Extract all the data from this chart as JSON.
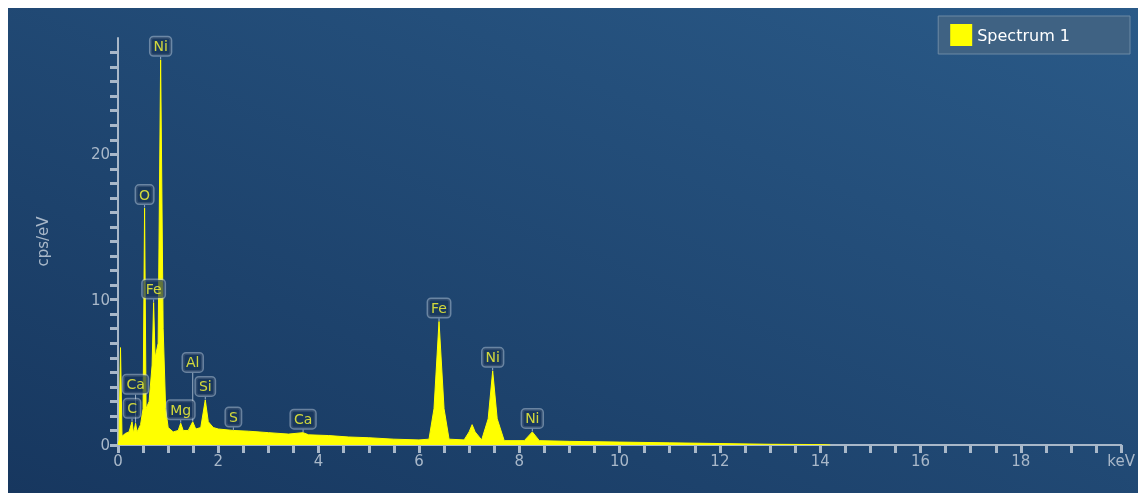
{
  "chart_data": {
    "type": "area",
    "ylabel": "cps/eV",
    "legend": "top right",
    "grid": false,
    "xlim": [
      0,
      20
    ],
    "ylim": [
      0,
      28
    ],
    "xticks": [
      0,
      {
        "value": 0.5,
        "label": null
      },
      {
        "value": 1,
        "label": null
      },
      {
        "value": 1.5,
        "label": null
      },
      2,
      {
        "value": 2.5,
        "label": null
      },
      {
        "value": 3,
        "label": null
      },
      {
        "value": 3.5,
        "label": null
      },
      4,
      {
        "value": 4.5,
        "label": null
      },
      {
        "value": 5,
        "label": null
      },
      {
        "value": 5.5,
        "label": null
      },
      6,
      {
        "value": 6.5,
        "label": null
      },
      {
        "value": 7,
        "label": null
      },
      {
        "value": 7.5,
        "label": null
      },
      8,
      {
        "value": 8.5,
        "label": null
      },
      {
        "value": 9,
        "label": null
      },
      {
        "value": 9.5,
        "label": null
      },
      10,
      {
        "value": 10.5,
        "label": null
      },
      {
        "value": 11,
        "label": null
      },
      {
        "value": 11.5,
        "label": null
      },
      12,
      {
        "value": 12.5,
        "label": null
      },
      {
        "value": 13,
        "label": null
      },
      {
        "value": 13.5,
        "label": null
      },
      14,
      {
        "value": 14.5,
        "label": null
      },
      {
        "value": 15,
        "label": null
      },
      {
        "value": 15.5,
        "label": null
      },
      16,
      {
        "value": 16.5,
        "label": null
      },
      {
        "value": 17,
        "label": null
      },
      {
        "value": 17.5,
        "label": null
      },
      18,
      {
        "value": 18.5,
        "label": null
      },
      {
        "value": 19,
        "label": null
      },
      {
        "value": 19.5,
        "label": null
      },
      {
        "value": 20,
        "label": "keV"
      }
    ],
    "yticks": [
      0,
      {
        "value": 1,
        "label": null
      },
      {
        "value": 2,
        "label": null
      },
      {
        "value": 3,
        "label": null
      },
      {
        "value": 4,
        "label": null
      },
      {
        "value": 5,
        "label": null
      },
      {
        "value": 6,
        "label": null
      },
      {
        "value": 7,
        "label": null
      },
      {
        "value": 8,
        "label": null
      },
      {
        "value": 9,
        "label": null
      },
      10,
      {
        "value": 11,
        "label": null
      },
      {
        "value": 12,
        "label": null
      },
      {
        "value": 13,
        "label": null
      },
      {
        "value": 14,
        "label": null
      },
      {
        "value": 15,
        "label": null
      },
      {
        "value": 16,
        "label": null
      },
      {
        "value": 17,
        "label": null
      },
      {
        "value": 18,
        "label": null
      },
      {
        "value": 19,
        "label": null
      },
      20,
      {
        "value": 21,
        "label": null
      },
      {
        "value": 22,
        "label": null
      },
      {
        "value": 23,
        "label": null
      },
      {
        "value": 24,
        "label": null
      },
      {
        "value": 25,
        "label": null
      },
      {
        "value": 26,
        "label": null
      },
      {
        "value": 27,
        "label": null
      }
    ],
    "series": [
      {
        "name": "Spectrum 1",
        "color": "#ffff00",
        "x": [
          0,
          0.02,
          0.05,
          0.08,
          0.15,
          0.22,
          0.28,
          0.31,
          0.35,
          0.38,
          0.45,
          0.5,
          0.53,
          0.56,
          0.62,
          0.68,
          0.71,
          0.74,
          0.8,
          0.85,
          0.9,
          0.95,
          1.0,
          1.1,
          1.2,
          1.25,
          1.3,
          1.4,
          1.49,
          1.55,
          1.65,
          1.74,
          1.8,
          1.9,
          2.0,
          2.3,
          2.6,
          3.0,
          3.4,
          3.69,
          3.8,
          4.2,
          4.6,
          5.0,
          5.5,
          6.0,
          6.2,
          6.3,
          6.4,
          6.5,
          6.6,
          6.9,
          7.0,
          7.06,
          7.12,
          7.25,
          7.38,
          7.47,
          7.56,
          7.7,
          8.1,
          8.26,
          8.4,
          9,
          10,
          11,
          12,
          13,
          14,
          14.2
        ],
        "values": [
          0,
          0.3,
          6.7,
          0.6,
          0.8,
          0.9,
          1.6,
          0.8,
          1.5,
          0.9,
          1.4,
          2.5,
          16.3,
          2.5,
          3,
          5.5,
          9.8,
          6,
          7,
          26.5,
          8,
          2.5,
          1.2,
          0.9,
          1.0,
          1.5,
          1.0,
          1.0,
          1.6,
          1.1,
          1.2,
          3.1,
          1.6,
          1.2,
          1.1,
          1.0,
          0.95,
          0.85,
          0.75,
          0.85,
          0.7,
          0.65,
          0.55,
          0.5,
          0.4,
          0.35,
          0.4,
          2.5,
          8.5,
          2.5,
          0.4,
          0.35,
          0.9,
          1.4,
          0.9,
          0.35,
          1.8,
          5.1,
          1.8,
          0.3,
          0.3,
          0.9,
          0.3,
          0.25,
          0.2,
          0.15,
          0.1,
          0.05,
          0.03,
          0
        ]
      }
    ],
    "annotations": [
      {
        "text": "Ni",
        "x": 0.85,
        "y": 26.5
      },
      {
        "text": "O",
        "x": 0.53,
        "y": 16.3
      },
      {
        "text": "Fe",
        "x": 0.71,
        "y": 9.8
      },
      {
        "text": "Si",
        "x": 1.74,
        "y": 3.1
      },
      {
        "text": "Mg",
        "x": 1.25,
        "y": 1.5
      },
      {
        "text": "C",
        "x": 0.28,
        "y": 1.6
      },
      {
        "text": "Ca",
        "x": 0.35,
        "y": 1.5
      },
      {
        "text": "Al",
        "x": 1.49,
        "y": 1.6
      },
      {
        "text": "S",
        "x": 2.3,
        "y": 1.0
      },
      {
        "text": "Ca",
        "x": 3.69,
        "y": 0.85
      },
      {
        "text": "Fe",
        "x": 6.4,
        "y": 8.5
      },
      {
        "text": "Ni",
        "x": 7.47,
        "y": 5.1
      },
      {
        "text": "Ni",
        "x": 8.26,
        "y": 0.9
      }
    ]
  }
}
